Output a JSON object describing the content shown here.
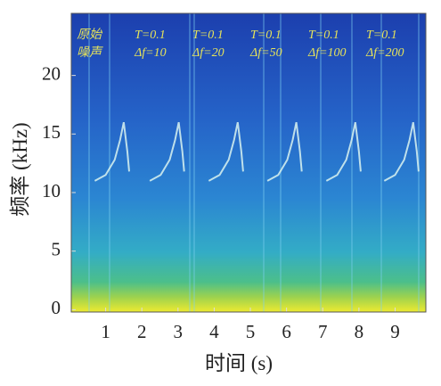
{
  "chart_data": {
    "type": "spectrogram",
    "x_label": "时间 (s)",
    "y_label": "频率 (kHz)",
    "xlim": [
      0.05,
      9.85
    ],
    "xticks": [
      1,
      2,
      3,
      4,
      5,
      6,
      7,
      8,
      9
    ],
    "ylim": [
      -0.2,
      25.3
    ],
    "yticks": [
      0,
      5,
      10,
      15,
      20
    ],
    "annotations": [
      {
        "x": 0.2,
        "lines": [
          "原始",
          "噪声"
        ]
      },
      {
        "x": 1.8,
        "lines": [
          "T=0.1",
          "Δf=10"
        ]
      },
      {
        "x": 3.4,
        "lines": [
          "T=0.1",
          "Δf=20"
        ]
      },
      {
        "x": 5.0,
        "lines": [
          "T=0.1",
          "Δf=50"
        ]
      },
      {
        "x": 6.6,
        "lines": [
          "T=0.1",
          "Δf=100"
        ]
      },
      {
        "x": 8.2,
        "lines": [
          "T=0.1",
          "Δf=200"
        ]
      }
    ],
    "annotation_color": "#e6e35a",
    "series": [
      {
        "color": "#d9f3f0",
        "x": [
          0.7,
          1.0,
          1.25,
          1.4,
          1.5,
          1.6,
          1.65
        ],
        "values": [
          11,
          11.5,
          12.8,
          14.5,
          16,
          13.5,
          11.8
        ]
      },
      {
        "color": "#d9f3f0",
        "x": [
          2.22,
          2.52,
          2.77,
          2.92,
          3.02,
          3.12,
          3.17
        ],
        "values": [
          11,
          11.5,
          12.8,
          14.5,
          16,
          13.5,
          11.8
        ]
      },
      {
        "color": "#d9f3f0",
        "x": [
          3.85,
          4.15,
          4.4,
          4.55,
          4.65,
          4.75,
          4.8
        ],
        "values": [
          11,
          11.5,
          12.8,
          14.5,
          16,
          13.5,
          11.8
        ]
      },
      {
        "color": "#d9f3f0",
        "x": [
          5.47,
          5.77,
          6.02,
          6.17,
          6.27,
          6.37,
          6.42
        ],
        "values": [
          11,
          11.5,
          12.8,
          14.5,
          16,
          13.5,
          11.8
        ]
      },
      {
        "color": "#d9f3f0",
        "x": [
          7.1,
          7.4,
          7.65,
          7.8,
          7.9,
          8.0,
          8.05
        ],
        "values": [
          11,
          11.5,
          12.8,
          14.5,
          16,
          13.5,
          11.8
        ]
      },
      {
        "color": "#d9f3f0",
        "x": [
          8.7,
          9.0,
          9.25,
          9.4,
          9.5,
          9.6,
          9.65
        ],
        "values": [
          11,
          11.5,
          12.8,
          14.5,
          16,
          13.5,
          11.8
        ]
      }
    ]
  }
}
